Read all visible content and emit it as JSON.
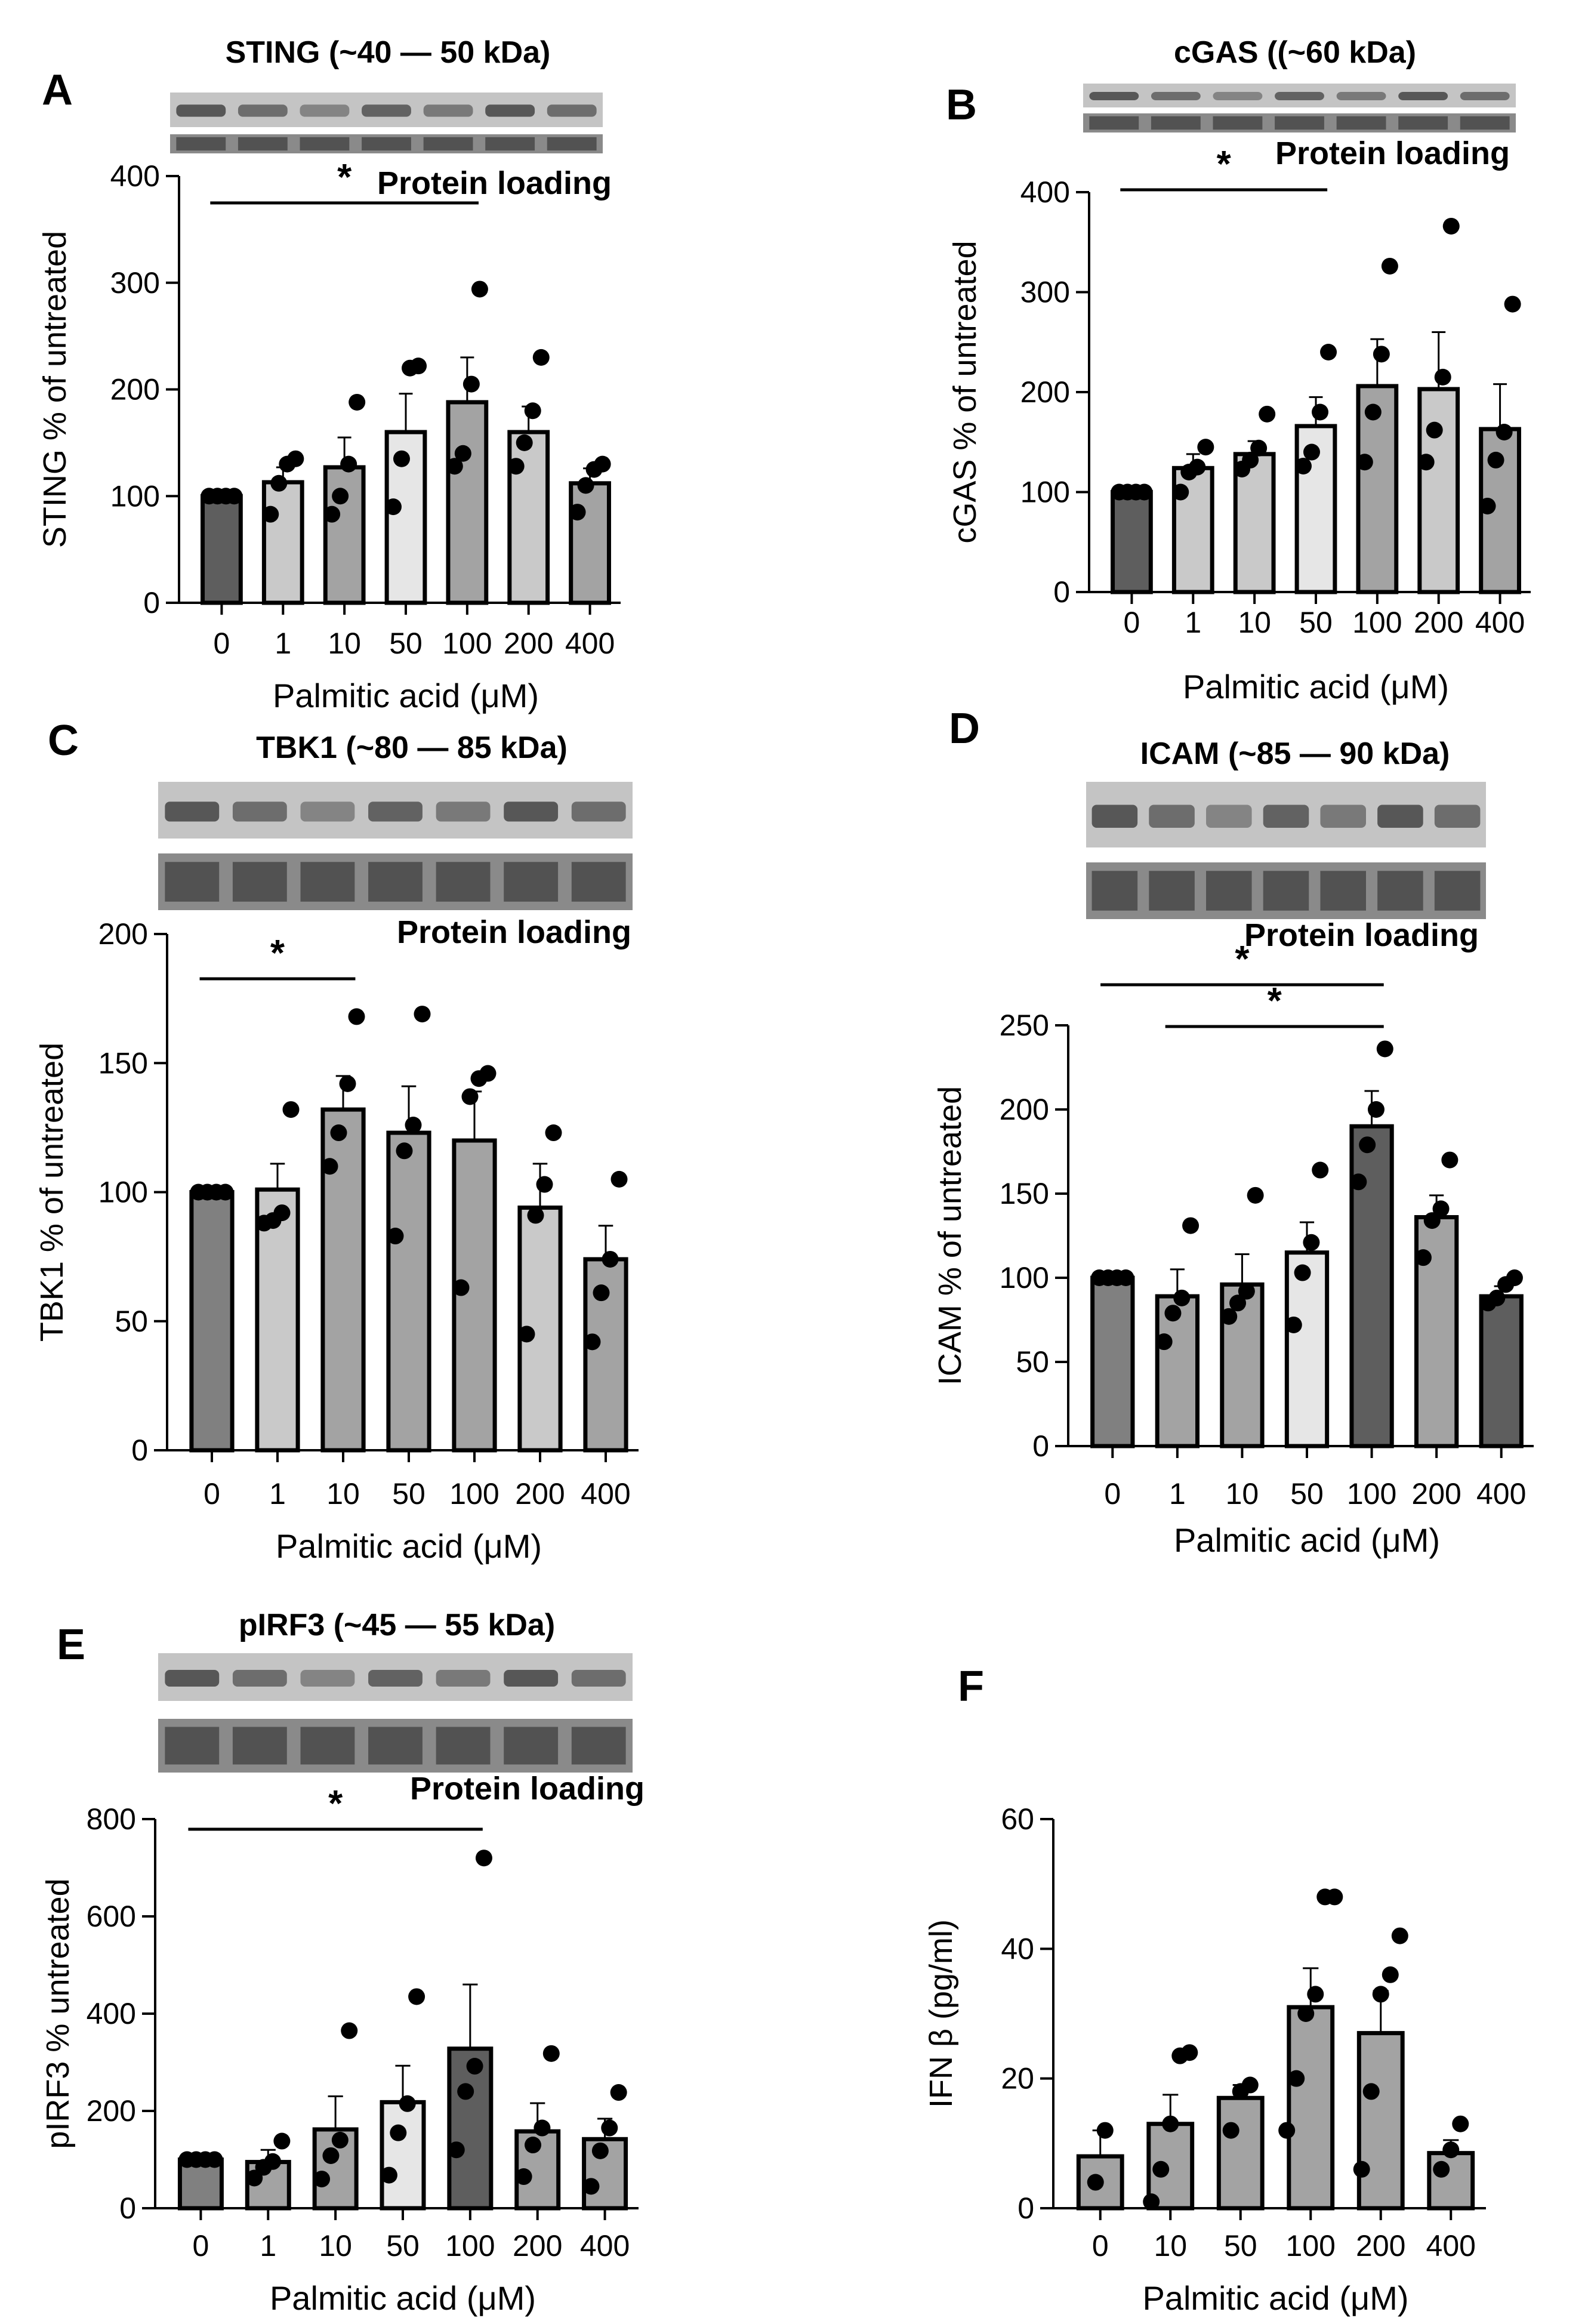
{
  "colors": {
    "ink": "#000000",
    "bar_darkest": "#5e5e5e",
    "bar_dark": "#808080",
    "bar_mid": "#a3a3a3",
    "bar_light": "#c9c9c9",
    "bar_lightest": "#e6e6e6",
    "blot_band": "#3a3a3a",
    "blot_bg": "#d2d2d2"
  },
  "chart_data": [
    {
      "panel": "A",
      "type": "bar",
      "title": "STING (~40 — 50 kDa)",
      "loading_label": "Protein loading",
      "xlabel": "Palmitic acid (μM)",
      "ylabel": "STING % of untreated",
      "ylim": [
        0,
        400
      ],
      "yticks": [
        0,
        100,
        200,
        300,
        400
      ],
      "categories": [
        "0",
        "1",
        "10",
        "50",
        "100",
        "200",
        "400"
      ],
      "values": [
        100,
        113,
        127,
        160,
        188,
        160,
        112
      ],
      "errors": [
        0,
        14,
        28,
        36,
        42,
        24,
        14
      ],
      "points": [
        [
          100,
          100,
          100,
          100
        ],
        [
          83,
          112,
          130,
          135
        ],
        [
          83,
          100,
          130,
          188
        ],
        [
          90,
          135,
          220,
          222
        ],
        [
          128,
          140,
          205,
          294
        ],
        [
          128,
          150,
          180,
          230
        ],
        [
          85,
          110,
          125,
          130
        ]
      ],
      "bar_colors": [
        "#5e5e5e",
        "#c9c9c9",
        "#a3a3a3",
        "#e6e6e6",
        "#a3a3a3",
        "#c9c9c9",
        "#a3a3a3"
      ],
      "significance": [
        {
          "from": "0",
          "to": "100",
          "label": "*"
        }
      ],
      "blot_lanes": 7
    },
    {
      "panel": "B",
      "type": "bar",
      "title": "cGAS ((~60 kDa)",
      "loading_label": "Protein loading",
      "xlabel": "Palmitic acid (μM)",
      "ylabel": "cGAS % of untreated",
      "ylim": [
        0,
        400
      ],
      "yticks": [
        0,
        100,
        200,
        300,
        400
      ],
      "categories": [
        "0",
        "1",
        "10",
        "50",
        "100",
        "200",
        "400"
      ],
      "values": [
        100,
        124,
        138,
        166,
        206,
        203,
        163
      ],
      "errors": [
        0,
        14,
        13,
        29,
        47,
        57,
        45
      ],
      "points": [
        [
          100,
          100,
          100,
          100
        ],
        [
          100,
          120,
          125,
          145
        ],
        [
          123,
          132,
          144,
          178
        ],
        [
          126,
          140,
          180,
          240
        ],
        [
          130,
          180,
          238,
          326
        ],
        [
          130,
          162,
          215,
          366
        ],
        [
          86,
          132,
          160,
          288
        ]
      ],
      "bar_colors": [
        "#5e5e5e",
        "#c9c9c9",
        "#c9c9c9",
        "#e6e6e6",
        "#a3a3a3",
        "#c9c9c9",
        "#a3a3a3"
      ],
      "significance": [
        {
          "from": "0",
          "to": "50",
          "label": "*"
        }
      ],
      "blot_lanes": 7
    },
    {
      "panel": "C",
      "type": "bar",
      "title": "TBK1 (~80 — 85 kDa)",
      "loading_label": "Protein loading",
      "xlabel": "Palmitic acid (μM)",
      "ylabel": "TBK1 % of untreated",
      "ylim": [
        0,
        200
      ],
      "yticks": [
        0,
        50,
        100,
        150,
        200
      ],
      "categories": [
        "0",
        "1",
        "10",
        "50",
        "100",
        "200",
        "400"
      ],
      "values": [
        100,
        101,
        132,
        123,
        120,
        94,
        74
      ],
      "errors": [
        0,
        10,
        13,
        18,
        19,
        17,
        13
      ],
      "points": [
        [
          100,
          100,
          100,
          100
        ],
        [
          88,
          89,
          92,
          132
        ],
        [
          110,
          123,
          142,
          168
        ],
        [
          83,
          116,
          126,
          169
        ],
        [
          63,
          137,
          144,
          146
        ],
        [
          45,
          91,
          103,
          123
        ],
        [
          42,
          61,
          74,
          105
        ]
      ],
      "bar_colors": [
        "#808080",
        "#c9c9c9",
        "#a3a3a3",
        "#a3a3a3",
        "#a3a3a3",
        "#c9c9c9",
        "#a3a3a3"
      ],
      "significance": [
        {
          "from": "0",
          "to": "10",
          "label": "*"
        }
      ],
      "blot_lanes": 7
    },
    {
      "panel": "D",
      "type": "bar",
      "title": "ICAM (~85 — 90 kDa)",
      "loading_label": "Protein loading",
      "xlabel": "Palmitic acid (μM)",
      "ylabel": "ICAM % of untreated",
      "ylim": [
        0,
        250
      ],
      "yticks": [
        0,
        50,
        100,
        150,
        200,
        250
      ],
      "categories": [
        "0",
        "1",
        "10",
        "50",
        "100",
        "200",
        "400"
      ],
      "values": [
        100,
        89,
        96,
        115,
        190,
        136,
        89
      ],
      "errors": [
        0,
        16,
        18,
        18,
        21,
        13,
        6
      ],
      "points": [
        [
          100,
          100,
          100,
          100
        ],
        [
          62,
          79,
          88,
          131
        ],
        [
          77,
          85,
          92,
          149
        ],
        [
          72,
          103,
          121,
          164
        ],
        [
          157,
          179,
          200,
          236
        ],
        [
          112,
          134,
          141,
          170
        ],
        [
          85,
          88,
          96,
          100
        ]
      ],
      "bar_colors": [
        "#808080",
        "#a3a3a3",
        "#a3a3a3",
        "#e6e6e6",
        "#5e5e5e",
        "#a3a3a3",
        "#5e5e5e"
      ],
      "significance": [
        {
          "from": "0",
          "to": "100",
          "label": "*"
        },
        {
          "from": "1",
          "to": "100",
          "label": "*"
        }
      ],
      "blot_lanes": 7
    },
    {
      "panel": "E",
      "type": "bar",
      "title": "pIRF3 (~45 — 55 kDa)",
      "loading_label": "Protein loading",
      "xlabel": "Palmitic acid (μM)",
      "ylabel": "pIRF3 % untreated",
      "ylim": [
        0,
        800
      ],
      "yticks": [
        0,
        200,
        400,
        600,
        800
      ],
      "categories": [
        "0",
        "1",
        "10",
        "50",
        "100",
        "200",
        "400"
      ],
      "values": [
        100,
        95,
        162,
        218,
        328,
        158,
        142
      ],
      "errors": [
        0,
        25,
        68,
        75,
        132,
        58,
        42
      ],
      "points": [
        [
          100,
          100,
          100,
          100
        ],
        [
          62,
          84,
          96,
          138
        ],
        [
          60,
          108,
          140,
          365
        ],
        [
          68,
          155,
          215,
          435
        ],
        [
          120,
          240,
          292,
          720
        ],
        [
          65,
          130,
          165,
          318
        ],
        [
          45,
          118,
          165,
          238
        ]
      ],
      "bar_colors": [
        "#808080",
        "#a3a3a3",
        "#a3a3a3",
        "#e6e6e6",
        "#5e5e5e",
        "#a3a3a3",
        "#a3a3a3"
      ],
      "significance": [
        {
          "from": "0",
          "to": "100",
          "label": "*"
        }
      ],
      "blot_lanes": 7
    },
    {
      "panel": "F",
      "type": "bar",
      "title": "",
      "loading_label": "",
      "xlabel": "Palmitic acid (μM)",
      "ylabel": "IFN β (pg/ml)",
      "ylim": [
        0,
        60
      ],
      "yticks": [
        0,
        20,
        40,
        60
      ],
      "categories": [
        "0",
        "10",
        "50",
        "100",
        "200",
        "400"
      ],
      "values": [
        8,
        13,
        17,
        31,
        27,
        8.5
      ],
      "errors": [
        4,
        4.5,
        2,
        6,
        6.5,
        2
      ],
      "points": [
        [
          4,
          12
        ],
        [
          1,
          6,
          13,
          23.5,
          24
        ],
        [
          12,
          18,
          19
        ],
        [
          12,
          20,
          30,
          33,
          48,
          48
        ],
        [
          6,
          18,
          33,
          36,
          42
        ],
        [
          6,
          9,
          13
        ]
      ],
      "bar_colors": [
        "#a3a3a3",
        "#a3a3a3",
        "#a3a3a3",
        "#a3a3a3",
        "#a3a3a3",
        "#a3a3a3"
      ],
      "significance": [],
      "blot_lanes": 0
    }
  ]
}
